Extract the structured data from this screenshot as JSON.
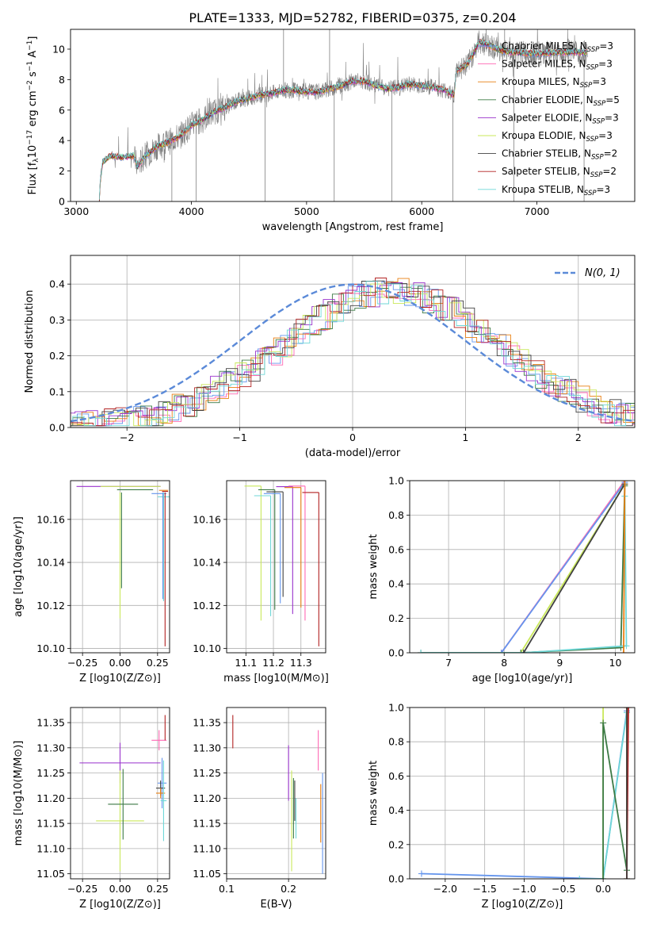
{
  "figure_title": "PLATE=1333, MJD=52782, FIBERID=0375, z=0.204",
  "colors": {
    "Chabrier MILES": "#6495ED",
    "Salpeter MILES": "#FF69B4",
    "Kroupa MILES": "#E87F11",
    "Chabrier ELODIE": "#3C7A45",
    "Salpeter ELODIE": "#9932CC",
    "Kroupa ELODIE": "#C9E85A",
    "Chabrier STELIB": "#404040",
    "Salpeter STELIB": "#B22222",
    "Kroupa STELIB": "#6FD7D7",
    "data": "#808080",
    "normal": "#5B8AD8"
  },
  "chart_data": [
    {
      "id": "spectrum",
      "type": "line",
      "title": "PLATE=1333, MJD=52782, FIBERID=0375, z=0.204",
      "xlabel": "wavelength [Angstrom, rest frame]",
      "ylabel": "Flux [f_λ 10^-17 erg cm^-2 s^-1 A^-1]",
      "xlim": [
        2950,
        7850
      ],
      "ylim": [
        0,
        11.3
      ],
      "xticks": [
        3000,
        4000,
        5000,
        6000,
        7000
      ],
      "yticks": [
        0,
        2,
        4,
        6,
        8,
        10
      ],
      "legend": [
        "Chabrier MILES, NSSP=3",
        "Salpeter MILES, NSSP=3",
        "Kroupa MILES, NSSP=3",
        "Chabrier ELODIE, NSSP=5",
        "Salpeter ELODIE, NSSP=3",
        "Kroupa ELODIE, NSSP=3",
        "Chabrier STELIB, NSSP=2",
        "Salpeter STELIB, NSSP=2",
        "Kroupa STELIB, NSSP=3"
      ],
      "legend_placement": "upper-right",
      "continuum": {
        "x": [
          3200,
          3210,
          3230,
          3300,
          3400,
          3500,
          3530,
          3600,
          3700,
          3800,
          3900,
          4000,
          4100,
          4200,
          4300,
          4400,
          4500,
          4600,
          4700,
          4800,
          4900,
          5000,
          5100,
          5200,
          5300,
          5400,
          5500,
          5600,
          5700,
          5800,
          5900,
          6000,
          6100,
          6200,
          6250,
          6280,
          6300,
          6400,
          6500,
          6600,
          6700,
          6800,
          7000,
          7200,
          7350,
          7430
        ],
        "y": [
          0,
          1.5,
          2.6,
          3.0,
          2.9,
          3.0,
          2.3,
          3.0,
          3.6,
          3.9,
          4.3,
          5.0,
          5.4,
          5.9,
          6.2,
          6.6,
          6.8,
          7.0,
          7.1,
          7.3,
          7.3,
          7.2,
          7.2,
          7.4,
          7.6,
          7.9,
          7.9,
          7.6,
          7.4,
          7.5,
          7.7,
          7.6,
          7.5,
          7.3,
          7.1,
          7.0,
          8.6,
          9.0,
          10.5,
          10.2,
          9.9,
          9.8,
          9.7,
          9.8,
          9.8,
          9.8
        ]
      },
      "data_spikes_down": [
        3830,
        4040,
        4640,
        5240,
        5740,
        6270,
        6800,
        7410
      ],
      "data_spikes_up": [
        4800,
        5200,
        6560,
        6720
      ]
    },
    {
      "id": "residuals",
      "type": "histogram",
      "xlabel": "(data-model)/error",
      "ylabel": "Normed distribution",
      "xlim": [
        -2.5,
        2.5
      ],
      "ylim": [
        0,
        0.48
      ],
      "xticks": [
        -2,
        -1,
        0,
        1,
        2
      ],
      "yticks": [
        0.0,
        0.1,
        0.2,
        0.3,
        0.4
      ],
      "legend": [
        "N(0,1)"
      ],
      "legend_placement": "upper-right",
      "grid": true
    },
    {
      "id": "age-vs-Z",
      "type": "scatter",
      "xlabel": "Z [log10(Z/Z⊙)]",
      "ylabel": "age [log10(age/yr)]",
      "xlim": [
        -0.33,
        0.33
      ],
      "ylim": [
        10.098,
        10.178
      ],
      "xticks": [
        -0.25,
        0.0,
        0.25
      ],
      "yticks": [
        10.1,
        10.12,
        10.14,
        10.16
      ],
      "points": [
        {
          "model": "Salpeter ELODIE",
          "x": -0.01,
          "y": 10.1753,
          "xerr": 0.28
        },
        {
          "model": "Kroupa ELODIE",
          "x": 0.07,
          "y": 10.1753,
          "xerr": 0.2
        },
        {
          "model": "Chabrier ELODIE",
          "x": 0.1,
          "y": 10.1738,
          "xerr": 0.12
        },
        {
          "model": "Chabrier MILES",
          "x": 0.26,
          "y": 10.172,
          "xerr": 0.05
        },
        {
          "model": "Kroupa STELIB",
          "x": 0.29,
          "y": 10.1705,
          "xerr": 0.04
        },
        {
          "model": "Kroupa MILES",
          "x": 0.29,
          "y": 10.1735,
          "xerr": 0.03
        },
        {
          "model": "Salpeter STELIB",
          "x": 0.3,
          "y": 10.173,
          "xerr": 0.02
        }
      ],
      "drops": [
        {
          "model": "Kroupa ELODIE",
          "x": 0.0,
          "y_low": 10.114
        },
        {
          "model": "Chabrier ELODIE",
          "x": 0.01,
          "y_low": 10.128
        },
        {
          "model": "Salpeter STELIB",
          "x": 0.3,
          "y_low": 10.101
        },
        {
          "model": "Kroupa STELIB",
          "x": 0.29,
          "y_low": 10.122
        },
        {
          "model": "Chabrier MILES",
          "x": 0.285,
          "y_low": 10.123
        }
      ]
    },
    {
      "id": "age-vs-mass",
      "type": "scatter",
      "xlabel": "mass [log10(M/M⊙)]",
      "ylabel": "",
      "xlim": [
        11.03,
        11.39
      ],
      "ylim": [
        10.098,
        10.178
      ],
      "xticks": [
        11.1,
        11.2,
        11.3
      ],
      "yticks": [
        10.1,
        10.12,
        10.14,
        10.16
      ],
      "drops": [
        {
          "model": "Kroupa ELODIE",
          "x": 11.155,
          "y_low": 10.113
        },
        {
          "model": "Kroupa STELIB",
          "x": 11.19,
          "y_low": 10.115
        },
        {
          "model": "Chabrier ELODIE",
          "x": 11.205,
          "y_low": 10.118
        },
        {
          "model": "Chabrier MILES",
          "x": 11.225,
          "y_low": 10.121
        },
        {
          "model": "Chabrier STELIB",
          "x": 11.235,
          "y_low": 10.124
        },
        {
          "model": "Salpeter ELODIE",
          "x": 11.27,
          "y_low": 10.116
        },
        {
          "model": "Kroupa MILES",
          "x": 11.3,
          "y_low": 10.119
        },
        {
          "model": "Salpeter MILES",
          "x": 11.315,
          "y_low": 10.113
        },
        {
          "model": "Salpeter STELIB",
          "x": 11.365,
          "y_low": 10.101
        }
      ]
    },
    {
      "id": "weight-vs-age",
      "type": "line",
      "xlabel": "age [log10(age/yr)]",
      "ylabel": "mass weight",
      "xlim": [
        6.3,
        10.35
      ],
      "ylim": [
        0,
        1.0
      ],
      "xticks": [
        7,
        8,
        9,
        10
      ],
      "yticks": [
        0.0,
        0.2,
        0.4,
        0.6,
        0.8,
        1.0
      ],
      "series": [
        {
          "model": "Salpeter MILES",
          "x": [
            6.5,
            7.95,
            10.17
          ],
          "y": [
            0.0,
            0.0,
            1.0
          ]
        },
        {
          "model": "Chabrier MILES",
          "x": [
            6.5,
            7.95,
            10.17
          ],
          "y": [
            0.0,
            0.0,
            0.99
          ]
        },
        {
          "model": "Kroupa ELODIE",
          "x": [
            6.5,
            8.3,
            10.17
          ],
          "y": [
            0.0,
            0.0,
            0.98
          ]
        },
        {
          "model": "Chabrier ELODIE",
          "x": [
            6.5,
            8.3,
            10.1,
            10.17
          ],
          "y": [
            0.0,
            0.0,
            0.03,
            0.97
          ]
        },
        {
          "model": "Kroupa STELIB",
          "x": [
            6.5,
            8.35,
            10.2,
            10.17
          ],
          "y": [
            0.0,
            0.0,
            0.04,
            0.91
          ]
        },
        {
          "model": "Chabrier STELIB",
          "x": [
            8.35,
            10.17
          ],
          "y": [
            0.0,
            0.98
          ]
        },
        {
          "model": "Kroupa MILES",
          "x": [
            10.15,
            10.17
          ],
          "y": [
            0.0,
            1.0
          ]
        }
      ]
    },
    {
      "id": "mass-vs-Z",
      "type": "scatter",
      "xlabel": "Z [log10(Z/Z⊙)]",
      "ylabel": "mass [log10(M/M⊙)]",
      "xlim": [
        -0.33,
        0.33
      ],
      "ylim": [
        11.04,
        11.38
      ],
      "xticks": [
        -0.25,
        0.0,
        0.25
      ],
      "yticks": [
        11.05,
        11.1,
        11.15,
        11.2,
        11.25,
        11.3,
        11.35
      ],
      "points": [
        {
          "model": "Salpeter ELODIE",
          "x": 0.0,
          "y": 11.27,
          "xerr": 0.27,
          "yerr": 0.04
        },
        {
          "model": "Kroupa ELODIE",
          "x": 0.0,
          "y": 11.155,
          "xerr": 0.16,
          "yerr": 0.1
        },
        {
          "model": "Chabrier ELODIE",
          "x": 0.02,
          "y": 11.188,
          "xerr": 0.1,
          "yerr": 0.07
        },
        {
          "model": "Salpeter MILES",
          "x": 0.26,
          "y": 11.315,
          "xerr": 0.05,
          "yerr": 0.02
        },
        {
          "model": "Salpeter STELIB",
          "x": 0.3,
          "y": 11.34,
          "xerr": 0.0,
          "yerr": 0.025
        },
        {
          "model": "Chabrier MILES",
          "x": 0.28,
          "y": 11.23,
          "xerr": 0.03,
          "yerr": 0.05
        },
        {
          "model": "Chabrier STELIB",
          "x": 0.27,
          "y": 11.22,
          "xerr": 0.03,
          "yerr": 0.015
        },
        {
          "model": "Kroupa MILES",
          "x": 0.27,
          "y": 11.21,
          "xerr": 0.03,
          "yerr": 0.01
        },
        {
          "model": "Kroupa STELIB",
          "x": 0.29,
          "y": 11.195,
          "xerr": 0.02,
          "yerr": 0.08
        }
      ]
    },
    {
      "id": "mass-vs-EBV",
      "type": "scatter",
      "xlabel": "E(B-V)",
      "ylabel": "",
      "xlim": [
        0.1,
        0.26
      ],
      "ylim": [
        11.04,
        11.38
      ],
      "xticks": [
        0.1,
        0.2
      ],
      "yticks": [
        11.05,
        11.1,
        11.15,
        11.2,
        11.25,
        11.3,
        11.35
      ],
      "points": [
        {
          "model": "Salpeter STELIB",
          "x": 0.11,
          "y": 11.332,
          "yerr": 0.033
        },
        {
          "model": "Salpeter ELODIE",
          "x": 0.2,
          "y": 11.25,
          "yerr": 0.055
        },
        {
          "model": "Kroupa ELODIE",
          "x": 0.205,
          "y": 11.155,
          "yerr": 0.1
        },
        {
          "model": "Chabrier STELIB",
          "x": 0.21,
          "y": 11.195,
          "yerr": 0.04
        },
        {
          "model": "Chabrier ELODIE",
          "x": 0.208,
          "y": 11.18,
          "yerr": 0.06
        },
        {
          "model": "Kroupa STELIB",
          "x": 0.212,
          "y": 11.16,
          "yerr": 0.04
        },
        {
          "model": "Salpeter MILES",
          "x": 0.248,
          "y": 11.295,
          "yerr": 0.04
        },
        {
          "model": "Kroupa MILES",
          "x": 0.252,
          "y": 11.17,
          "yerr": 0.058
        },
        {
          "model": "Chabrier MILES",
          "x": 0.255,
          "y": 11.15,
          "yerr": 0.1
        }
      ]
    },
    {
      "id": "weight-vs-Z",
      "type": "line",
      "xlabel": "Z [log10(Z/Z⊙)]",
      "ylabel": "mass weight",
      "xlim": [
        -2.45,
        0.4
      ],
      "ylim": [
        0,
        1.0
      ],
      "xticks": [
        -2.0,
        -1.5,
        -1.0,
        -0.5,
        0.0
      ],
      "yticks": [
        0.0,
        0.2,
        0.4,
        0.6,
        0.8,
        1.0
      ],
      "series": [
        {
          "model": "Chabrier MILES",
          "x": [
            -2.3,
            0.0,
            0.3
          ],
          "y": [
            0.03,
            0.0,
            0.98
          ]
        },
        {
          "model": "Kroupa STELIB",
          "x": [
            -0.3,
            0.0,
            0.3
          ],
          "y": [
            0.0,
            0.0,
            0.97
          ]
        },
        {
          "model": "Kroupa ELODIE",
          "x": [
            0.0,
            0.0
          ],
          "y": [
            0.0,
            1.0
          ]
        },
        {
          "model": "Chabrier ELODIE",
          "x": [
            0.0,
            0.0,
            0.3
          ],
          "y": [
            0.0,
            0.91,
            0.05
          ]
        },
        {
          "model": "Kroupa MILES",
          "x": [
            0.3,
            0.3
          ],
          "y": [
            0.0,
            1.0
          ]
        },
        {
          "model": "Salpeter STELIB",
          "x": [
            0.3,
            0.32
          ],
          "y": [
            0.0,
            1.0
          ]
        },
        {
          "model": "Chabrier STELIB",
          "x": [
            0.3,
            0.3
          ],
          "y": [
            0.0,
            1.0
          ]
        }
      ]
    }
  ]
}
